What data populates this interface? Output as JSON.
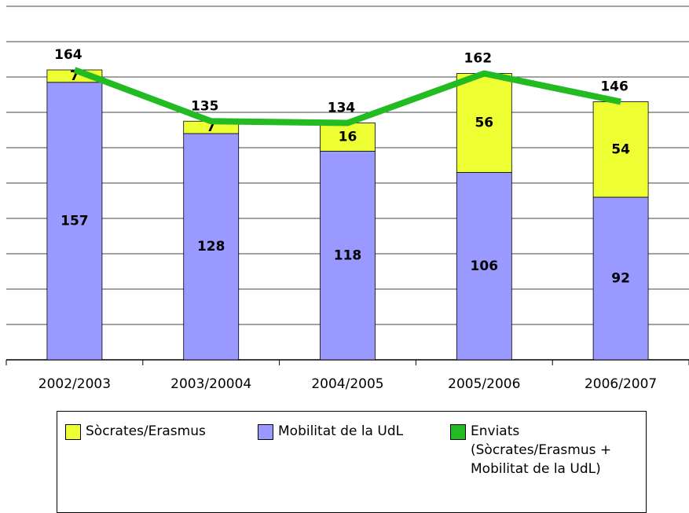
{
  "chart_data": {
    "type": "bar",
    "stacked": true,
    "categories": [
      "2002/2003",
      "2003/20004",
      "2004/2005",
      "2005/2006",
      "2006/2007"
    ],
    "series": [
      {
        "name": "Sòcrates/Erasmus",
        "color": "#eeff33",
        "values": [
          7,
          7,
          16,
          56,
          54
        ]
      },
      {
        "name": "Mobilitat de la UdL",
        "color": "#9999ff",
        "values": [
          157,
          128,
          118,
          106,
          92
        ]
      },
      {
        "name": "Enviats (Sòcrates/Erasmus + Mobilitat de la UdL)",
        "color": "#22bb22",
        "type": "line",
        "values": [
          164,
          135,
          134,
          162,
          146
        ]
      }
    ],
    "ylim": [
      0,
      200
    ],
    "yticks": [
      0,
      20,
      40,
      60,
      80,
      100,
      120,
      140,
      160,
      180,
      200
    ],
    "grid": true
  }
}
